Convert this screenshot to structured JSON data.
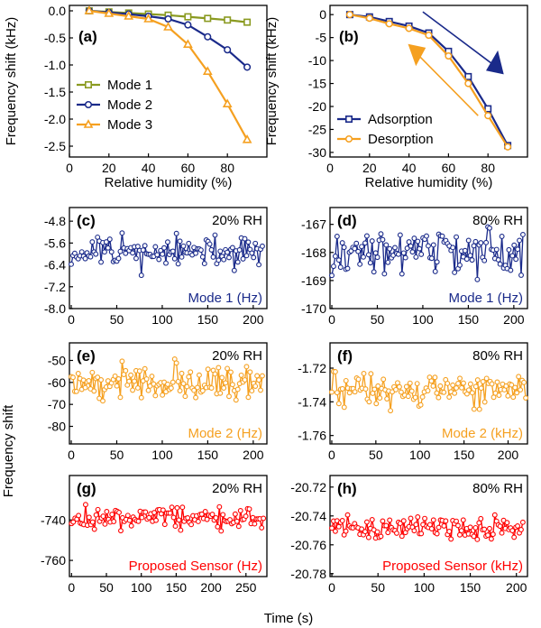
{
  "figure": {
    "shared_ylabel": "Frequency shift",
    "shared_xlabel": "Time (s)"
  },
  "colors": {
    "olive": "#8a9a20",
    "navy": "#1a2a8a",
    "orange": "#f5a020",
    "red": "#ff0000"
  },
  "chart_data": [
    {
      "id": "a",
      "type": "line",
      "panel_label": "(a)",
      "xlabel": "Relative humidity (%)",
      "ylabel": "Frequency shift (kHz)",
      "xlim": [
        0,
        100
      ],
      "ylim": [
        -2.7,
        0.1
      ],
      "xticks": [
        0,
        20,
        40,
        60,
        80
      ],
      "yticks": [
        -2.5,
        -2.0,
        -1.5,
        -1.0,
        -0.5,
        0.0
      ],
      "ytick_labels": [
        "-2.5",
        "-2.0",
        "-1.5",
        "-1.0",
        "-0.5",
        "0.0"
      ],
      "legend": "lower-left",
      "series": [
        {
          "name": "Mode 1",
          "color": "#8a9a20",
          "marker": "square",
          "x": [
            10,
            20,
            30,
            40,
            50,
            60,
            70,
            80,
            90
          ],
          "y": [
            0.0,
            -0.02,
            -0.04,
            -0.06,
            -0.08,
            -0.11,
            -0.14,
            -0.17,
            -0.21
          ]
        },
        {
          "name": "Mode 2",
          "color": "#1a2a8a",
          "marker": "circle",
          "x": [
            10,
            20,
            30,
            40,
            50,
            60,
            70,
            80,
            90
          ],
          "y": [
            0.0,
            -0.03,
            -0.06,
            -0.1,
            -0.15,
            -0.26,
            -0.48,
            -0.72,
            -1.04
          ]
        },
        {
          "name": "Mode 3",
          "color": "#f5a020",
          "marker": "triangle",
          "x": [
            10,
            20,
            30,
            40,
            50,
            60,
            70,
            80,
            90
          ],
          "y": [
            0.0,
            -0.05,
            -0.1,
            -0.15,
            -0.3,
            -0.62,
            -1.12,
            -1.72,
            -2.38
          ]
        }
      ]
    },
    {
      "id": "b",
      "type": "line",
      "panel_label": "(b)",
      "xlabel": "Relative humidity (%)",
      "ylabel": "Frequency shift (kHz)",
      "xlim": [
        0,
        100
      ],
      "ylim": [
        -31,
        2
      ],
      "xticks": [
        0,
        20,
        40,
        60,
        80
      ],
      "yticks": [
        -30,
        -25,
        -20,
        -15,
        -10,
        -5,
        0
      ],
      "ytick_labels": [
        "-30",
        "-25",
        "-20",
        "-15",
        "-10",
        "-5",
        "0"
      ],
      "legend": "lower-left",
      "series": [
        {
          "name": "Adsorption",
          "color": "#1a2a8a",
          "marker": "square",
          "x": [
            10,
            20,
            30,
            40,
            50,
            60,
            70,
            80,
            90
          ],
          "y": [
            0,
            -0.5,
            -1.5,
            -2.5,
            -4.0,
            -8.0,
            -13.5,
            -20.5,
            -28.5
          ]
        },
        {
          "name": "Desorption",
          "color": "#f5a020",
          "marker": "circle",
          "x": [
            10,
            20,
            30,
            40,
            50,
            60,
            70,
            80,
            90
          ],
          "y": [
            0,
            -0.8,
            -2.0,
            -3.0,
            -4.5,
            -9.0,
            -15.0,
            -22.0,
            -28.8
          ]
        }
      ]
    },
    {
      "id": "c",
      "type": "line",
      "panel_label": "(c)",
      "condition": "20% RH",
      "signal": "Mode 1 (Hz)",
      "color": "#1a2a8a",
      "xlim": [
        -2,
        215
      ],
      "ylim": [
        -8.0,
        -4.3
      ],
      "xticks": [
        0,
        50,
        100,
        150,
        200
      ],
      "yticks": [
        -8.0,
        -7.2,
        -6.4,
        -5.6,
        -4.8
      ],
      "ytick_labels": [
        "-8.0",
        "-7.2",
        "-6.4",
        "-5.6",
        "-4.8"
      ],
      "x_range": [
        0,
        210
      ],
      "mean": -5.95,
      "spread": 0.5,
      "seed": 11
    },
    {
      "id": "d",
      "type": "line",
      "panel_label": "(d)",
      "condition": "80% RH",
      "signal": "Mode 1 (Hz)",
      "color": "#1a2a8a",
      "xlim": [
        -2,
        215
      ],
      "ylim": [
        -170,
        -166.4
      ],
      "xticks": [
        0,
        50,
        100,
        150,
        200
      ],
      "yticks": [
        -170,
        -169,
        -168,
        -167
      ],
      "ytick_labels": [
        "-170",
        "-169",
        "-168",
        "-167"
      ],
      "x_range": [
        0,
        210
      ],
      "mean": -168.0,
      "spread": 0.65,
      "seed": 23
    },
    {
      "id": "e",
      "type": "line",
      "panel_label": "(e)",
      "condition": "20% RH",
      "signal": "Mode 2 (Hz)",
      "color": "#f5a020",
      "xlim": [
        -2,
        215
      ],
      "ylim": [
        -88,
        -42
      ],
      "xticks": [
        0,
        50,
        100,
        150,
        200
      ],
      "yticks": [
        -80,
        -70,
        -60,
        -50
      ],
      "ytick_labels": [
        "-80",
        "-70",
        "-60",
        "-50"
      ],
      "x_range": [
        0,
        210
      ],
      "mean": -60.0,
      "spread": 7.0,
      "seed": 37
    },
    {
      "id": "f",
      "type": "line",
      "panel_label": "(f)",
      "condition": "80% RH",
      "signal": "Mode 2 (kHz)",
      "color": "#f5a020",
      "xlim": [
        -2,
        222
      ],
      "ylim": [
        -1.765,
        -1.705
      ],
      "xticks": [
        0,
        50,
        100,
        150,
        200
      ],
      "yticks": [
        -1.76,
        -1.74,
        -1.72
      ],
      "ytick_labels": [
        "-1.76",
        "-1.74",
        "-1.72"
      ],
      "x_range": [
        0,
        220
      ],
      "mean": -1.733,
      "spread": 0.0085,
      "seed": 41
    },
    {
      "id": "g",
      "type": "line",
      "panel_label": "(g)",
      "condition": "20% RH",
      "signal": "Proposed Sensor (Hz)",
      "color": "#ff0000",
      "xlim": [
        -3,
        280
      ],
      "ylim": [
        -768,
        -718
      ],
      "xticks": [
        0,
        50,
        100,
        150,
        200,
        250
      ],
      "yticks": [
        -760,
        -740
      ],
      "ytick_labels": [
        "-760",
        "-740"
      ],
      "x_range": [
        0,
        275
      ],
      "mean": -739.0,
      "spread": 5.0,
      "seed": 53
    },
    {
      "id": "h",
      "type": "line",
      "panel_label": "(h)",
      "condition": "80% RH",
      "signal": "Proposed Sensor (kHz)",
      "color": "#ff0000",
      "xlim": [
        -2,
        212
      ],
      "ylim": [
        -20.782,
        -20.712
      ],
      "xticks": [
        0,
        50,
        100,
        150,
        200
      ],
      "yticks": [
        -20.78,
        -20.76,
        -20.74,
        -20.72
      ],
      "ytick_labels": [
        "-20.78",
        "-20.76",
        "-20.74",
        "-20.72"
      ],
      "x_range": [
        0,
        207
      ],
      "mean": -20.748,
      "spread": 0.0065,
      "seed": 67
    }
  ]
}
